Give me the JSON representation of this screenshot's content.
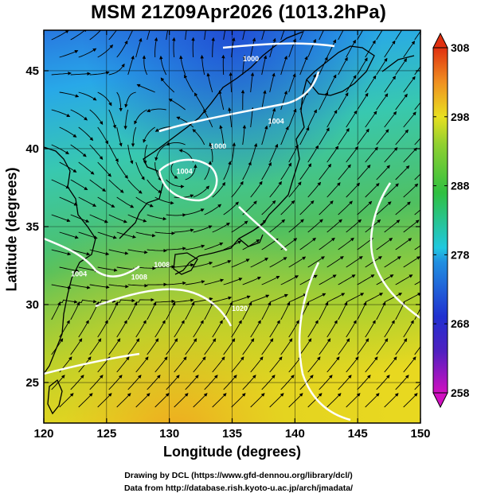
{
  "title": "MSM 21Z09Apr2026 (1013.2hPa)",
  "xlabel": "Longitude (degrees)",
  "ylabel": "Latitude  (degrees)",
  "footer": {
    "line1": "Drawing by DCL (https://www.gfd-dennou.org/library/dcl/)",
    "line2": "Data from http://database.rish.kyoto-u.ac.jp/arch/jmadata/"
  },
  "chart_data": {
    "type": "heatmap",
    "title": "MSM 21Z09Apr2026 (1013.2hPa)",
    "xlabel": "Longitude (degrees)",
    "ylabel": "Latitude  (degrees)",
    "xlim": [
      120,
      150
    ],
    "ylim": [
      22.4,
      47.6
    ],
    "x_ticks": [
      120,
      125,
      130,
      135,
      140,
      145,
      150
    ],
    "y_ticks": [
      25,
      30,
      35,
      40,
      45
    ],
    "x_tick_labels": [
      "120",
      "125",
      "130",
      "135",
      "140",
      "145",
      "150"
    ],
    "y_tick_labels": [
      "25",
      "30",
      "35",
      "40",
      "45"
    ],
    "grid": true,
    "colorbar": {
      "min": 258,
      "max": 308,
      "ticks": [
        258,
        268,
        278,
        288,
        298,
        308
      ],
      "tick_labels": [
        "258",
        "268",
        "278",
        "288",
        "298",
        "308"
      ],
      "colors": [
        "#d010c0",
        "#2030d0",
        "#20c8e0",
        "#30c040",
        "#e8e020",
        "#e03010"
      ]
    },
    "contour_labels": [
      {
        "text": "1000",
        "lon": 136.5,
        "lat": 45.6
      },
      {
        "text": "1004",
        "lon": 138.5,
        "lon2": 0,
        "lat": 41.6
      },
      {
        "text": "1000",
        "lon": 133.9,
        "lat": 40.0
      },
      {
        "text": "1004",
        "lon": 122.8,
        "lat": 31.8
      },
      {
        "text": "1008",
        "lon": 127.6,
        "lat": 31.6
      },
      {
        "text": "1008",
        "lon": 129.4,
        "lat": 32.4
      },
      {
        "text": "1020",
        "lon": 135.6,
        "lat": 29.6
      },
      {
        "text": "1004",
        "lon": 131.2,
        "lat": 38.4
      }
    ]
  }
}
